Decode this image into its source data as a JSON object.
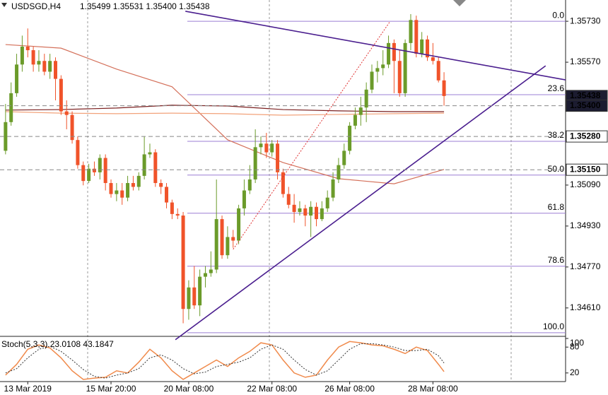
{
  "chart_data": {
    "type": "candlestick",
    "symbol": "USDSGD,H4",
    "ohlc_text": "1.35499 1.35531 1.35400 1.35438",
    "up_color": "#6b9b2a",
    "down_color": "#f0532a",
    "open": [
      1.35224,
      1.35336,
      1.35449,
      1.35561,
      1.35631,
      1.35617,
      1.35561,
      1.35575,
      1.35533,
      1.35575,
      1.35505,
      1.35378,
      1.35364,
      1.35266,
      1.35168,
      1.35106,
      1.35154,
      1.3514,
      1.35196,
      1.35098,
      1.35055,
      1.35069,
      1.35041,
      1.35098,
      1.35083,
      1.35126,
      1.3521,
      1.35218,
      1.35098,
      1.35083,
      1.35022,
      1.34977,
      1.34971,
      1.34606,
      1.3469,
      1.3462,
      1.34732,
      1.34746,
      1.3476,
      1.34957,
      1.34816,
      1.34887,
      1.34873,
      1.34999,
      1.35069,
      1.35112,
      1.35238,
      1.35252,
      1.35218,
      1.35252,
      1.3514,
      1.35055,
      1.35013,
      1.34985,
      1.34999,
      1.34971,
      1.35005,
      1.34957,
      1.34999,
      1.35041,
      1.35112,
      1.35168,
      1.35224,
      1.35322,
      1.35364,
      1.35393,
      1.35463,
      1.35533,
      1.35547,
      1.35561,
      1.35645,
      1.35575,
      1.35449,
      1.35645,
      1.35735,
      1.35603,
      1.35659,
      1.35589,
      1.35575,
      1.35499
    ],
    "high": [
      1.35407,
      1.35491,
      1.35603,
      1.35674,
      1.35702,
      1.35631,
      1.35617,
      1.35603,
      1.35603,
      1.35589,
      1.35519,
      1.35421,
      1.35378,
      1.3528,
      1.35182,
      1.35173,
      1.35182,
      1.3521,
      1.3521,
      1.35112,
      1.35098,
      1.35098,
      1.35126,
      1.35126,
      1.3514,
      1.3528,
      1.35252,
      1.3523,
      1.35112,
      1.35098,
      1.35033,
      1.34999,
      1.34985,
      1.34718,
      1.34774,
      1.3476,
      1.34774,
      1.34831,
      1.35112,
      1.34971,
      1.34929,
      1.34915,
      1.35013,
      1.35112,
      1.35168,
      1.35308,
      1.3528,
      1.35294,
      1.35266,
      1.35266,
      1.35154,
      1.35083,
      1.35055,
      1.35027,
      1.35013,
      1.35027,
      1.35022,
      1.35027,
      1.35069,
      1.3514,
      1.35196,
      1.35252,
      1.35336,
      1.35393,
      1.35435,
      1.35491,
      1.35561,
      1.35575,
      1.35617,
      1.35674,
      1.35659,
      1.35617,
      1.35659,
      1.35758,
      1.35752,
      1.35688,
      1.35674,
      1.35645,
      1.35589,
      1.35531
    ],
    "low": [
      1.3521,
      1.35322,
      1.35435,
      1.35533,
      1.35589,
      1.35533,
      1.35533,
      1.35519,
      1.35505,
      1.35421,
      1.35364,
      1.35308,
      1.35252,
      1.35154,
      1.35089,
      1.35098,
      1.35126,
      1.35112,
      1.35069,
      1.35041,
      1.35027,
      1.35013,
      1.35027,
      1.35069,
      1.35069,
      1.35112,
      1.35196,
      1.35083,
      1.35055,
      1.34999,
      1.34957,
      1.34957,
      1.3455,
      1.34564,
      1.34606,
      1.34578,
      1.3469,
      1.34732,
      1.34746,
      1.34802,
      1.34802,
      1.34845,
      1.34859,
      1.34971,
      1.35055,
      1.35098,
      1.3521,
      1.35196,
      1.35201,
      1.35112,
      1.35041,
      1.34999,
      1.34943,
      1.34971,
      1.34929,
      1.34887,
      1.34929,
      1.34949,
      1.34985,
      1.35027,
      1.35098,
      1.35154,
      1.3521,
      1.35308,
      1.35322,
      1.35336,
      1.35449,
      1.35491,
      1.35519,
      1.35547,
      1.35449,
      1.35435,
      1.35435,
      1.35617,
      1.35589,
      1.35589,
      1.35575,
      1.35561,
      1.35491,
      1.354
    ],
    "close": [
      1.35336,
      1.35449,
      1.35561,
      1.35631,
      1.35617,
      1.35561,
      1.35575,
      1.35533,
      1.35575,
      1.35505,
      1.35378,
      1.35364,
      1.35266,
      1.35168,
      1.35106,
      1.35154,
      1.3514,
      1.35196,
      1.35098,
      1.35055,
      1.35069,
      1.35041,
      1.35098,
      1.35083,
      1.35126,
      1.3521,
      1.35218,
      1.35098,
      1.35083,
      1.35022,
      1.34977,
      1.34971,
      1.34606,
      1.3469,
      1.3462,
      1.34732,
      1.34746,
      1.3476,
      1.34957,
      1.34816,
      1.34887,
      1.34873,
      1.34999,
      1.35069,
      1.35112,
      1.35238,
      1.35252,
      1.35218,
      1.35252,
      1.3514,
      1.35055,
      1.35013,
      1.34985,
      1.34999,
      1.34971,
      1.35005,
      1.34957,
      1.34999,
      1.35041,
      1.35112,
      1.35168,
      1.35224,
      1.35322,
      1.35364,
      1.35393,
      1.35463,
      1.35533,
      1.35547,
      1.35561,
      1.35645,
      1.35575,
      1.35449,
      1.35645,
      1.35735,
      1.35603,
      1.35659,
      1.35589,
      1.35575,
      1.35499,
      1.35438
    ],
    "xlim": [
      -1,
      100.9
    ],
    "ylim": [
      1.34499,
      1.35791
    ],
    "yticks": [
      {
        "value": 1.3573,
        "label": "1.35730"
      },
      {
        "value": 1.3557,
        "label": "1.35570"
      },
      {
        "value": 1.3509,
        "label": "1.35090"
      },
      {
        "value": 1.3493,
        "label": "1.34930"
      },
      {
        "value": 1.3477,
        "label": "1.34770"
      },
      {
        "value": 1.3461,
        "label": "1.34610"
      }
    ],
    "xticks": [
      {
        "value": 4,
        "label": "13 Mar 2019"
      },
      {
        "value": 19,
        "label": "15 Mar 20:00"
      },
      {
        "value": 33,
        "label": "20 Mar 08:00"
      },
      {
        "value": 48,
        "label": "22 Mar 08:00"
      },
      {
        "value": 62,
        "label": "26 Mar 08:00"
      },
      {
        "value": 77,
        "label": "28 Mar 08:00"
      }
    ],
    "price_markers": [
      {
        "value": 1.35438,
        "label": "1.35438",
        "color": "#1c1c30",
        "text_color": "#ffffff",
        "dashed": false
      },
      {
        "value": 1.354,
        "label": "1.35400",
        "color": "#1c1c30",
        "text_color": "#ffffff",
        "dashed": true
      },
      {
        "value": 1.3528,
        "label": "1.35280",
        "color": "#ffffff",
        "text_color": "#000000",
        "dashed": true
      },
      {
        "value": 1.3515,
        "label": "1.35150",
        "color": "#ffffff",
        "text_color": "#000000",
        "dashed": true
      }
    ],
    "fib_color": "#9b7fd4",
    "fib_levels": [
      {
        "level": "0.0",
        "price": 1.3573
      },
      {
        "level": "23.6",
        "price": 1.35443
      },
      {
        "level": "38.2",
        "price": 1.35261
      },
      {
        "level": "50.0",
        "price": 1.35129
      },
      {
        "level": "61.8",
        "price": 1.3498
      },
      {
        "level": "78.6",
        "price": 1.34773
      },
      {
        "level": "100.0",
        "price": 1.34513
      }
    ],
    "moving_averages": {
      "x": [
        0,
        10,
        20,
        30,
        40,
        50,
        60,
        70,
        79
      ],
      "series": [
        {
          "color": "#d4705a",
          "values": [
            1.35639,
            1.35625,
            1.35543,
            1.35474,
            1.35267,
            1.35178,
            1.35115,
            1.35095,
            1.35151
          ]
        },
        {
          "color": "#f2a27a",
          "values": [
            1.35377,
            1.35371,
            1.35369,
            1.35371,
            1.35369,
            1.35363,
            1.35366,
            1.35369,
            1.35371
          ]
        },
        {
          "color": "#7a1f1f",
          "values": [
            1.35383,
            1.35385,
            1.35391,
            1.35402,
            1.35399,
            1.35385,
            1.3538,
            1.35377,
            1.35377
          ]
        }
      ]
    },
    "trendlines": [
      {
        "color": "#4b1f8f",
        "x": [
          32.4,
          100.9
        ],
        "y": [
          1.35769,
          1.35501
        ],
        "dashed": false
      },
      {
        "color": "#4b1f8f",
        "x": [
          30.6,
          97.3
        ],
        "y": [
          1.34486,
          1.35556
        ],
        "dashed": false
      },
      {
        "color": "#e03030",
        "x": [
          41,
          69.3
        ],
        "y": [
          1.34839,
          1.3573
        ],
        "dashed": true
      }
    ],
    "stochastic": {
      "title": "Stoch(5,3,3) 23.0108 43.1847",
      "ylim": [
        0,
        100
      ],
      "yticks": [
        20,
        80,
        100
      ],
      "x": [
        0,
        2,
        4,
        6,
        8,
        10,
        12,
        14,
        16,
        18,
        20,
        22,
        24,
        26,
        28,
        30,
        32,
        34,
        36,
        38,
        40,
        42,
        44,
        46,
        48,
        50,
        52,
        54,
        56,
        58,
        60,
        62,
        64,
        66,
        68,
        70,
        72,
        74,
        76,
        78,
        79
      ],
      "series": [
        {
          "color": "#f08a4b",
          "dashed": false,
          "values": [
            15,
            40,
            75,
            85,
            78,
            55,
            25,
            5,
            8,
            10,
            25,
            20,
            45,
            75,
            55,
            25,
            5,
            20,
            35,
            50,
            35,
            55,
            70,
            90,
            85,
            50,
            20,
            10,
            15,
            50,
            80,
            93,
            90,
            85,
            83,
            75,
            65,
            80,
            72,
            40,
            23.0108
          ]
        },
        {
          "color": "#333333",
          "dashed": true,
          "values": [
            20,
            30,
            55,
            75,
            82,
            70,
            50,
            28,
            12,
            8,
            15,
            20,
            30,
            55,
            62,
            50,
            30,
            18,
            22,
            35,
            40,
            45,
            55,
            75,
            85,
            75,
            50,
            28,
            15,
            25,
            50,
            75,
            88,
            88,
            85,
            80,
            72,
            72,
            75,
            60,
            43.1847
          ]
        }
      ]
    }
  }
}
